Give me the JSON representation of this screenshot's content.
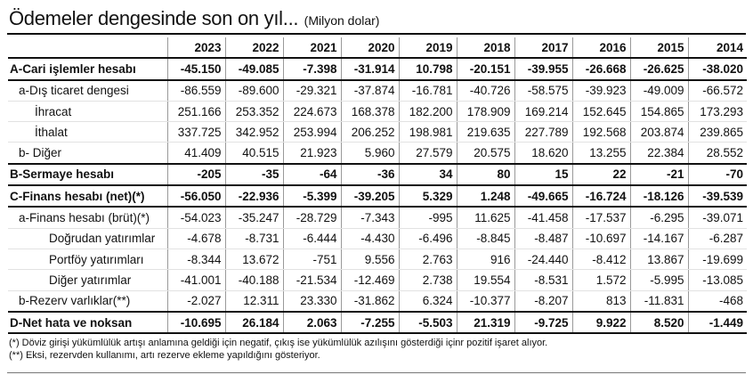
{
  "title": {
    "main": "Ödemeler dengesinde son on yıl...",
    "sub": "(Milyon dolar)"
  },
  "years": [
    "2023",
    "2022",
    "2021",
    "2020",
    "2019",
    "2018",
    "2017",
    "2016",
    "2015",
    "2014"
  ],
  "rows": [
    {
      "label": "A-Cari işlemler hesabı",
      "values": [
        "-45.150",
        "-49.085",
        "-7.398",
        "-31.914",
        "10.798",
        "-20.151",
        "-39.955",
        "-26.668",
        "-26.625",
        "-38.020"
      ]
    },
    {
      "label": "a-Dış ticaret dengesi",
      "values": [
        "-86.559",
        "-89.600",
        "-29.321",
        "-37.874",
        "-16.781",
        "-40.726",
        "-58.575",
        "-39.923",
        "-49.009",
        "-66.572"
      ]
    },
    {
      "label": "İhracat",
      "values": [
        "251.166",
        "253.352",
        "224.673",
        "168.378",
        "182.200",
        "178.909",
        "169.214",
        "152.645",
        "154.865",
        "173.293"
      ]
    },
    {
      "label": "İthalat",
      "values": [
        "337.725",
        "342.952",
        "253.994",
        "206.252",
        "198.981",
        "219.635",
        "227.789",
        "192.568",
        "203.874",
        "239.865"
      ]
    },
    {
      "label": "b- Diğer",
      "values": [
        "41.409",
        "40.515",
        "21.923",
        "5.960",
        "27.579",
        "20.575",
        "18.620",
        "13.255",
        "22.384",
        "28.552"
      ]
    },
    {
      "label": "B-Sermaye hesabı",
      "values": [
        "-205",
        "-35",
        "-64",
        "-36",
        "34",
        "80",
        "15",
        "22",
        "-21",
        "-70"
      ]
    },
    {
      "label": "C-Finans hesabı (net)(*)",
      "values": [
        "-56.050",
        "-22.936",
        "-5.399",
        "-39.205",
        "5.329",
        "1.248",
        "-49.665",
        "-16.724",
        "-18.126",
        "-39.539"
      ]
    },
    {
      "label": "a-Finans hesabı (brüt)(*)",
      "values": [
        "-54.023",
        "-35.247",
        "-28.729",
        "-7.343",
        "-995",
        "11.625",
        "-41.458",
        "-17.537",
        "-6.295",
        "-39.071"
      ]
    },
    {
      "label": "Doğrudan yatırımlar",
      "values": [
        "-4.678",
        "-8.731",
        "-6.444",
        "-4.430",
        "-6.496",
        "-8.845",
        "-8.487",
        "-10.697",
        "-14.167",
        "-6.287"
      ]
    },
    {
      "label": "Portföy yatırımları",
      "values": [
        "-8.344",
        "13.672",
        "-751",
        "9.556",
        "2.763",
        "916",
        "-24.440",
        "-8.412",
        "13.867",
        "-19.699"
      ]
    },
    {
      "label": "Diğer yatırımlar",
      "values": [
        "-41.001",
        "-40.188",
        "-21.534",
        "-12.469",
        "2.738",
        "19.554",
        "-8.531",
        "1.572",
        "-5.995",
        "-13.085"
      ]
    },
    {
      "label": "b-Rezerv varlıklar(**)",
      "values": [
        "-2.027",
        "12.311",
        "23.330",
        "-31.862",
        "6.324",
        "-10.377",
        "-8.207",
        "813",
        "-11.831",
        "-468"
      ]
    },
    {
      "label": "D-Net hata ve noksan",
      "values": [
        "-10.695",
        "26.184",
        "2.063",
        "-7.255",
        "-5.503",
        "21.319",
        "-9.725",
        "9.922",
        "8.520",
        "-1.449"
      ]
    }
  ],
  "notes": [
    "(*) Döviz girişi yükümlülük artışı anlamına geldiği için negatif, çıkış ise yükümlülük azılışını gösterdiği içinr pozitif işaret alıyor.",
    "(**) Eksi, rezervden kullanımı, artı rezerve ekleme yapıldığını gösteriyor."
  ]
}
